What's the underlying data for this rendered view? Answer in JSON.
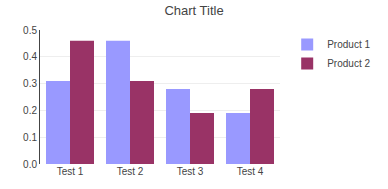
{
  "chart_data": {
    "type": "bar",
    "title": "Chart Title",
    "categories": [
      "Test 1",
      "Test 2",
      "Test 3",
      "Test 4"
    ],
    "series": [
      {
        "name": "Product 1",
        "color": "#9999FF",
        "values": [
          0.31,
          0.46,
          0.28,
          0.19
        ]
      },
      {
        "name": "Product 2",
        "color": "#993366",
        "values": [
          0.46,
          0.31,
          0.19,
          0.28
        ]
      }
    ],
    "ylim": [
      0,
      0.5
    ],
    "yticks": [
      {
        "value": 0,
        "label": "0.0"
      },
      0.1,
      0.2,
      0.3,
      0.4,
      0.5
    ],
    "grid": true,
    "legend": "right"
  }
}
